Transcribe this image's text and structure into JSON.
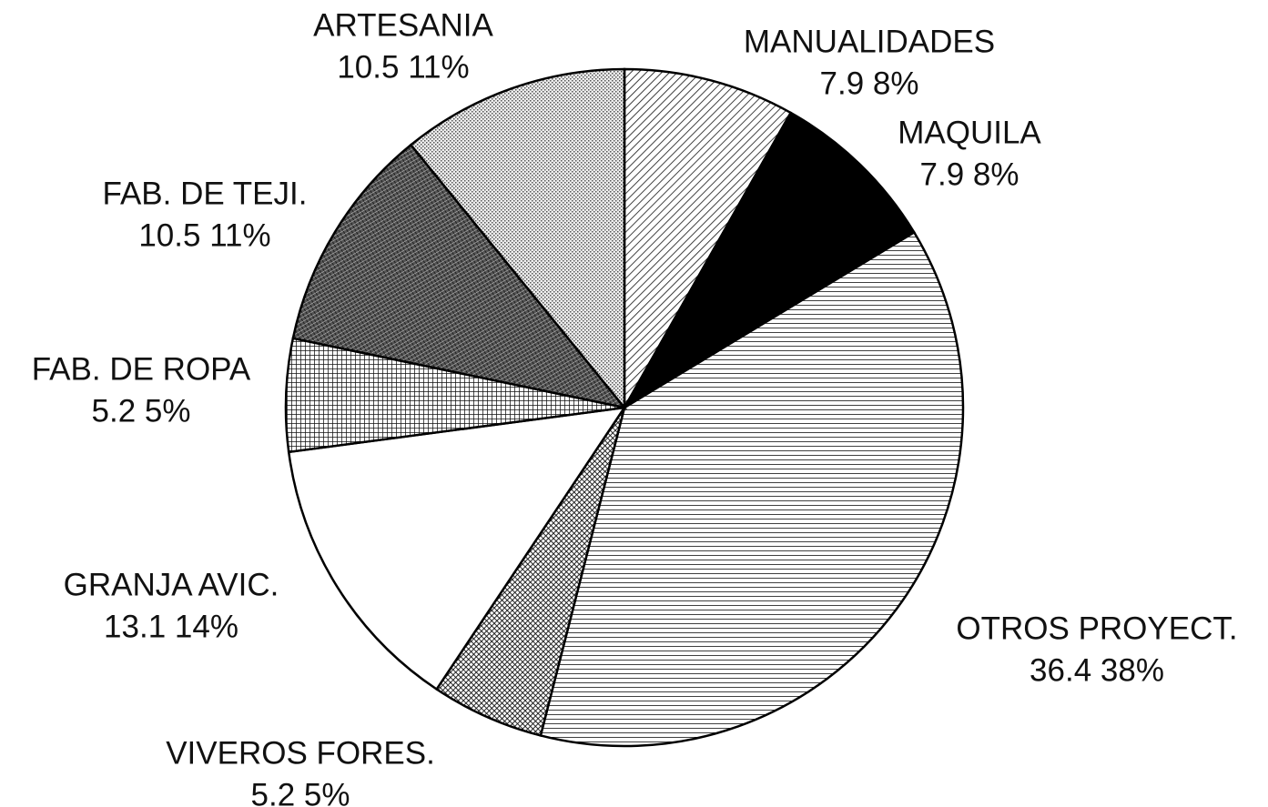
{
  "chart_data": {
    "type": "pie",
    "categories": [
      "MANUALIDADES",
      "MAQUILA",
      "OTROS PROYECT.",
      "VIVEROS FORES.",
      "GRANJA AVIC.",
      "FAB. DE ROPA",
      "FAB. DE TEJI.",
      "ARTESANIA"
    ],
    "values": [
      7.9,
      7.9,
      36.4,
      5.2,
      13.1,
      5.2,
      10.5,
      10.5
    ],
    "value_labels": [
      "7.9 8%",
      "7.9 8%",
      "36.4 38%",
      "5.2 5%",
      "13.1 14%",
      "5.2 5%",
      "10.5 11%",
      "10.5 11%"
    ]
  }
}
